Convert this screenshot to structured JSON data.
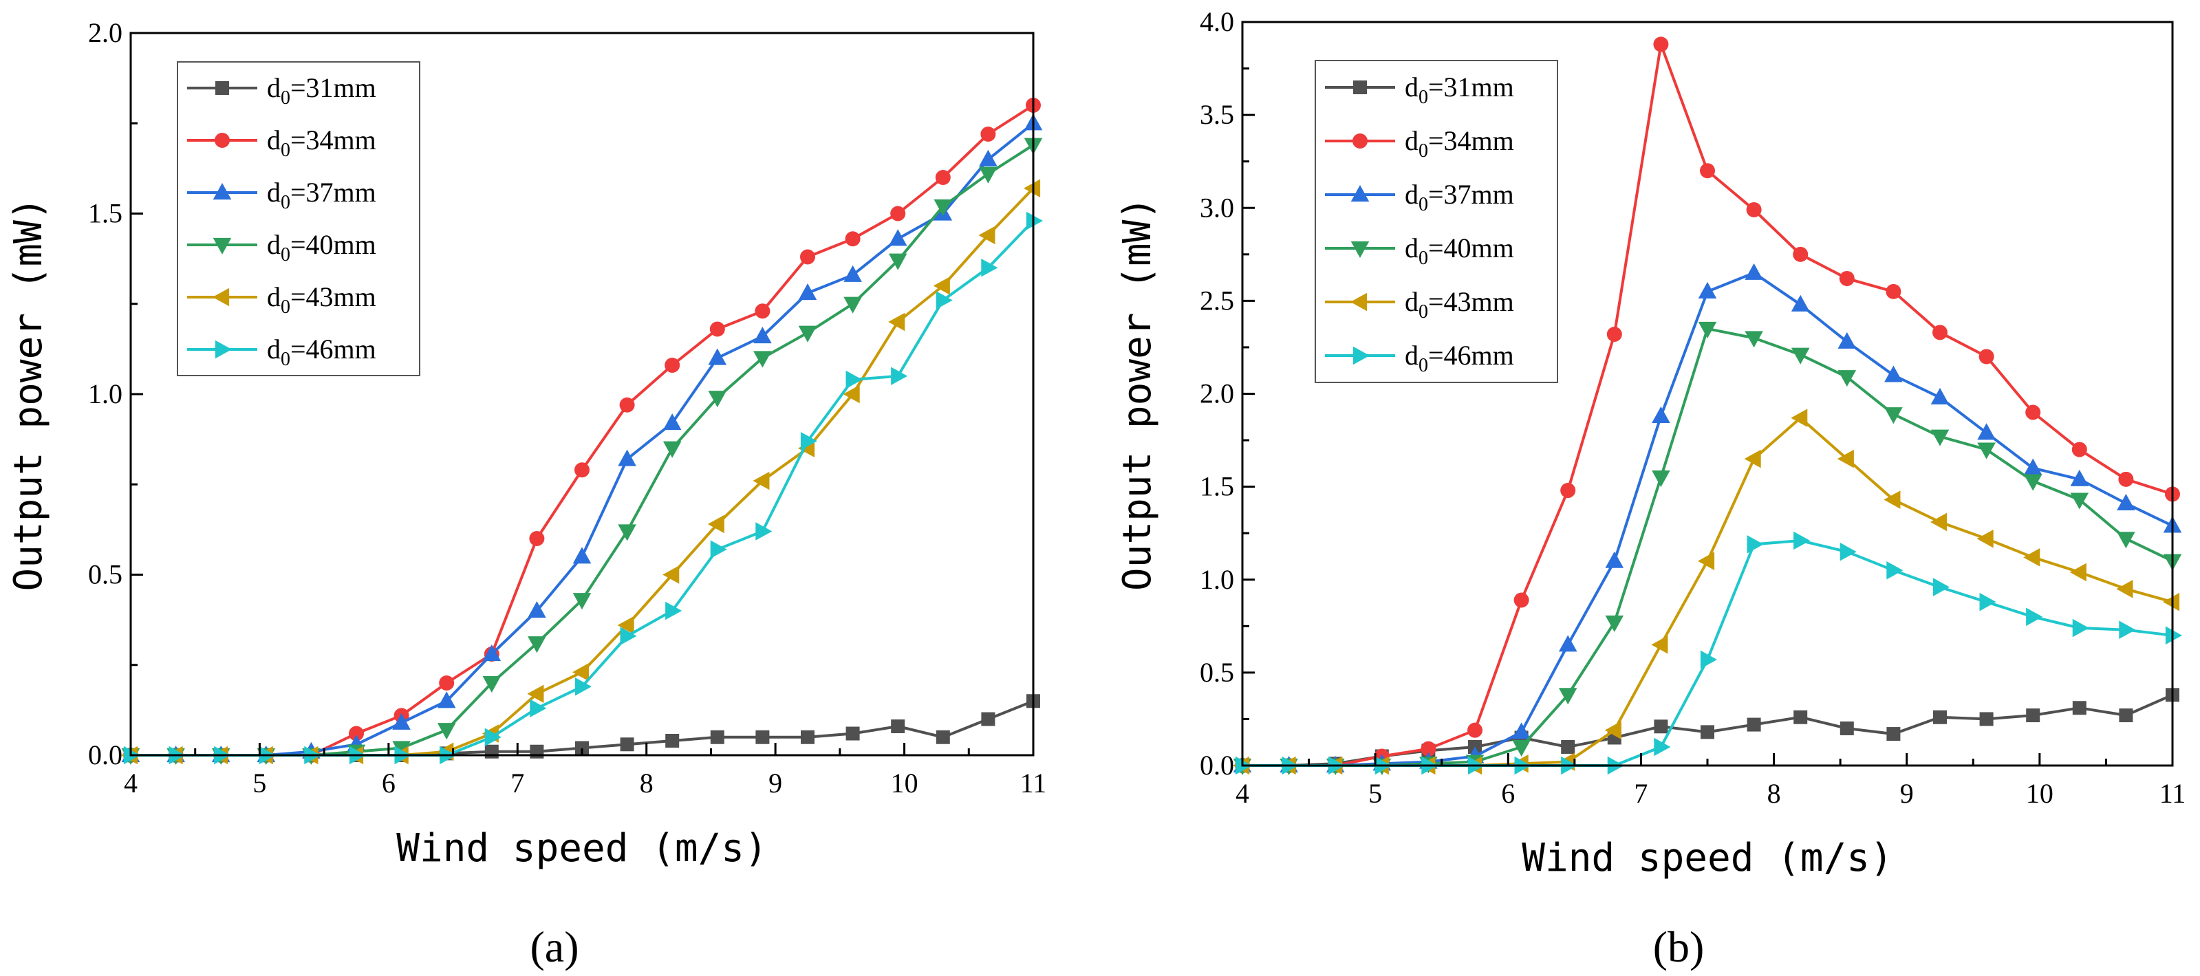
{
  "chart_data": [
    {
      "type": "line",
      "panel_label": "(a)",
      "xlabel": "Wind speed (m/s)",
      "ylabel": "Output power (mW)",
      "xlim": [
        4,
        11
      ],
      "ylim": [
        0,
        2.0
      ],
      "xticks": [
        "4",
        "5",
        "6",
        "7",
        "8",
        "9",
        "10",
        "11"
      ],
      "yticks": [
        "0.0",
        "0.5",
        "1.0",
        "1.5",
        "2.0"
      ],
      "legend_position": "top-left",
      "x": [
        4.0,
        4.35,
        4.7,
        5.05,
        5.4,
        5.75,
        6.1,
        6.45,
        6.8,
        7.15,
        7.5,
        7.85,
        8.2,
        8.55,
        8.9,
        9.25,
        9.6,
        9.95,
        10.3,
        10.65,
        11.0
      ],
      "series": [
        {
          "name": "d0=31mm",
          "label_main": "d",
          "label_sub": "0",
          "label_rest": "=31mm",
          "color": "#505050",
          "marker": "square",
          "values": [
            0,
            0,
            0,
            0,
            0,
            0,
            0,
            0.005,
            0.01,
            0.01,
            0.02,
            0.03,
            0.04,
            0.05,
            0.05,
            0.05,
            0.06,
            0.08,
            0.05,
            0.1,
            0.15
          ]
        },
        {
          "name": "d0=34mm",
          "label_main": "d",
          "label_sub": "0",
          "label_rest": "=34mm",
          "color": "#ef3a3a",
          "marker": "circle",
          "values": [
            0,
            0,
            0,
            0,
            0,
            0.06,
            0.11,
            0.2,
            0.28,
            0.6,
            0.79,
            0.97,
            1.08,
            1.18,
            1.23,
            1.38,
            1.43,
            1.5,
            1.6,
            1.72,
            1.8
          ]
        },
        {
          "name": "d0=37mm",
          "label_main": "d",
          "label_sub": "0",
          "label_rest": "=37mm",
          "color": "#2a6fdb",
          "marker": "triangle-up",
          "values": [
            0,
            0,
            0,
            0,
            0.01,
            0.03,
            0.09,
            0.15,
            0.28,
            0.4,
            0.55,
            0.82,
            0.92,
            1.1,
            1.16,
            1.28,
            1.33,
            1.43,
            1.5,
            1.65,
            1.75
          ]
        },
        {
          "name": "d0=40mm",
          "label_main": "d",
          "label_sub": "0",
          "label_rest": "=40mm",
          "color": "#2f9e5b",
          "marker": "triangle-down",
          "values": [
            0,
            0,
            0,
            0,
            0,
            0.01,
            0.02,
            0.07,
            0.2,
            0.31,
            0.43,
            0.62,
            0.85,
            0.99,
            1.1,
            1.17,
            1.25,
            1.37,
            1.52,
            1.61,
            1.69
          ]
        },
        {
          "name": "d0=43mm",
          "label_main": "d",
          "label_sub": "0",
          "label_rest": "=43mm",
          "color": "#c99a06",
          "marker": "triangle-left",
          "values": [
            0,
            0,
            0,
            0,
            0,
            0,
            0,
            0.01,
            0.06,
            0.17,
            0.23,
            0.36,
            0.5,
            0.64,
            0.76,
            0.85,
            1.0,
            1.2,
            1.3,
            1.44,
            1.57
          ]
        },
        {
          "name": "d0=46mm",
          "label_main": "d",
          "label_sub": "0",
          "label_rest": "=46mm",
          "color": "#1fc7cc",
          "marker": "triangle-right",
          "values": [
            0,
            0,
            0,
            0,
            0,
            0,
            0,
            0,
            0.05,
            0.13,
            0.19,
            0.33,
            0.4,
            0.57,
            0.62,
            0.87,
            1.04,
            1.05,
            1.26,
            1.35,
            1.48
          ]
        }
      ]
    },
    {
      "type": "line",
      "panel_label": "(b)",
      "xlabel": "Wind speed (m/s)",
      "ylabel": "Output power (mW)",
      "xlim": [
        4,
        11
      ],
      "ylim": [
        0,
        4.0
      ],
      "xticks": [
        "4",
        "5",
        "6",
        "7",
        "8",
        "9",
        "10",
        "11"
      ],
      "yticks": [
        "0.0",
        "0.5",
        "1.0",
        "1.5",
        "2.0",
        "2.5",
        "3.0",
        "3.5",
        "4.0"
      ],
      "legend_position": "top-left",
      "x": [
        4.0,
        4.35,
        4.7,
        5.05,
        5.4,
        5.75,
        6.1,
        6.45,
        6.8,
        7.15,
        7.5,
        7.85,
        8.2,
        8.55,
        8.9,
        9.25,
        9.6,
        9.95,
        10.3,
        10.65,
        11.0
      ],
      "series": [
        {
          "name": "d0=31mm",
          "label_main": "d",
          "label_sub": "0",
          "label_rest": "=31mm",
          "color": "#505050",
          "marker": "square",
          "values": [
            0,
            0,
            0.01,
            0.05,
            0.08,
            0.1,
            0.15,
            0.1,
            0.15,
            0.21,
            0.18,
            0.22,
            0.26,
            0.2,
            0.17,
            0.26,
            0.25,
            0.27,
            0.31,
            0.27,
            0.38
          ]
        },
        {
          "name": "d0=34mm",
          "label_main": "d",
          "label_sub": "0",
          "label_rest": "=34mm",
          "color": "#ef3a3a",
          "marker": "circle",
          "values": [
            0,
            0,
            0,
            0.05,
            0.09,
            0.19,
            0.89,
            1.48,
            2.32,
            3.88,
            3.2,
            2.99,
            2.75,
            2.62,
            2.55,
            2.33,
            2.2,
            1.9,
            1.7,
            1.54,
            1.46
          ]
        },
        {
          "name": "d0=37mm",
          "label_main": "d",
          "label_sub": "0",
          "label_rest": "=37mm",
          "color": "#2a6fdb",
          "marker": "triangle-up",
          "values": [
            0,
            0,
            0,
            0.01,
            0.02,
            0.05,
            0.18,
            0.65,
            1.1,
            1.88,
            2.55,
            2.65,
            2.48,
            2.28,
            2.1,
            1.98,
            1.79,
            1.6,
            1.54,
            1.41,
            1.29
          ]
        },
        {
          "name": "d0=40mm",
          "label_main": "d",
          "label_sub": "0",
          "label_rest": "=40mm",
          "color": "#2f9e5b",
          "marker": "triangle-down",
          "values": [
            0,
            0,
            0,
            0,
            0.01,
            0.02,
            0.1,
            0.38,
            0.77,
            1.55,
            2.35,
            2.3,
            2.21,
            2.09,
            1.89,
            1.77,
            1.7,
            1.53,
            1.43,
            1.22,
            1.1
          ]
        },
        {
          "name": "d0=43mm",
          "label_main": "d",
          "label_sub": "0",
          "label_rest": "=43mm",
          "color": "#c99a06",
          "marker": "triangle-left",
          "values": [
            0,
            0,
            0,
            0,
            0,
            0,
            0.01,
            0.02,
            0.19,
            0.65,
            1.1,
            1.65,
            1.87,
            1.65,
            1.43,
            1.31,
            1.22,
            1.12,
            1.04,
            0.95,
            0.88
          ]
        },
        {
          "name": "d0=46mm",
          "label_main": "d",
          "label_sub": "0",
          "label_rest": "=46mm",
          "color": "#1fc7cc",
          "marker": "triangle-right",
          "values": [
            0,
            0,
            0,
            0,
            0,
            0,
            0,
            0,
            0,
            0.1,
            0.57,
            1.19,
            1.21,
            1.15,
            1.05,
            0.96,
            0.88,
            0.8,
            0.74,
            0.73,
            0.7
          ]
        }
      ]
    }
  ]
}
